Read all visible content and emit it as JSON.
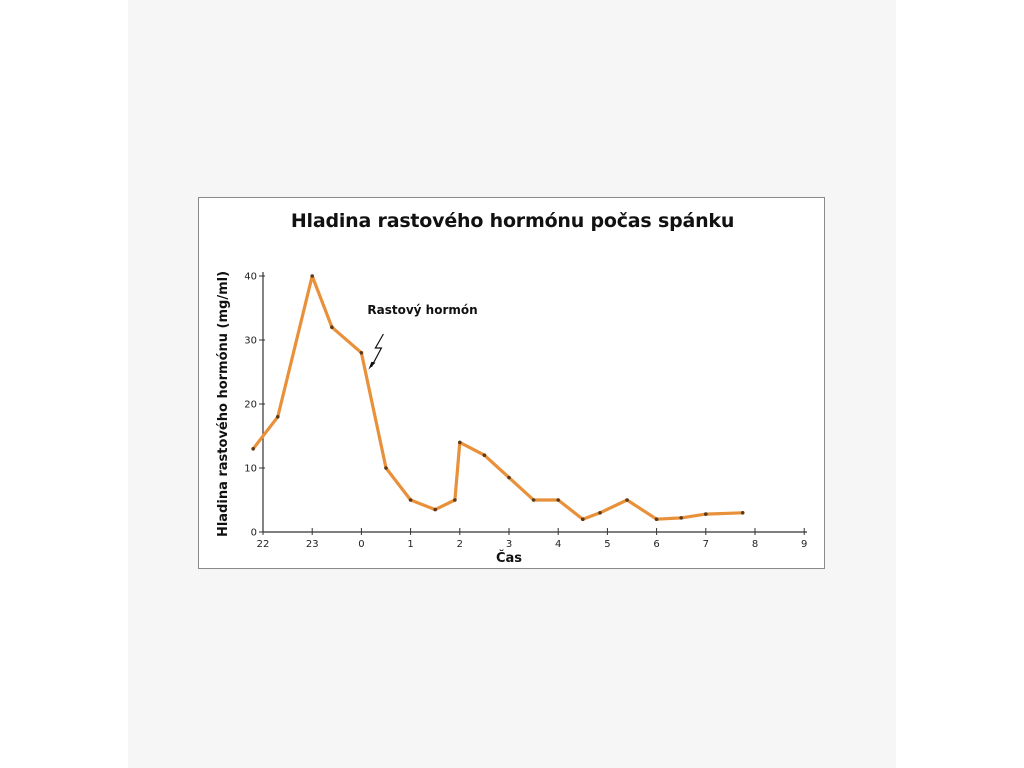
{
  "chart_data": {
    "type": "line",
    "title": "Hladina rastového hormónu počas spánku",
    "xlabel": "Čas",
    "ylabel": "Hladina rastového hormónu (mg/ml)",
    "x_ticks": [
      {
        "pos": 0,
        "label": "22"
      },
      {
        "pos": 1,
        "label": "23"
      },
      {
        "pos": 2,
        "label": "0"
      },
      {
        "pos": 3,
        "label": "1"
      },
      {
        "pos": 4,
        "label": "2"
      },
      {
        "pos": 5,
        "label": "3"
      },
      {
        "pos": 6,
        "label": "4"
      },
      {
        "pos": 7,
        "label": "5"
      },
      {
        "pos": 8,
        "label": "6"
      },
      {
        "pos": 9,
        "label": "7"
      },
      {
        "pos": 10,
        "label": "8"
      },
      {
        "pos": 11,
        "label": "9"
      }
    ],
    "y_ticks": [
      0,
      10,
      20,
      30,
      40
    ],
    "xlim": [
      -0.2,
      11
    ],
    "ylim": [
      0,
      40
    ],
    "series": [
      {
        "name": "",
        "color": "#e8913a",
        "points": [
          {
            "x": -0.2,
            "y": 13
          },
          {
            "x": 0.3,
            "y": 18
          },
          {
            "x": 1.0,
            "y": 40
          },
          {
            "x": 1.4,
            "y": 32
          },
          {
            "x": 2.0,
            "y": 28
          },
          {
            "x": 2.5,
            "y": 10
          },
          {
            "x": 3.0,
            "y": 5
          },
          {
            "x": 3.5,
            "y": 3.5
          },
          {
            "x": 3.9,
            "y": 5
          },
          {
            "x": 4.0,
            "y": 14
          },
          {
            "x": 4.5,
            "y": 12
          },
          {
            "x": 5.0,
            "y": 8.5
          },
          {
            "x": 5.5,
            "y": 5
          },
          {
            "x": 6.0,
            "y": 5
          },
          {
            "x": 6.5,
            "y": 2
          },
          {
            "x": 6.85,
            "y": 3
          },
          {
            "x": 7.4,
            "y": 5
          },
          {
            "x": 8.0,
            "y": 2
          },
          {
            "x": 8.5,
            "y": 2.2
          },
          {
            "x": 9.0,
            "y": 2.8
          },
          {
            "x": 9.75,
            "y": 3
          }
        ]
      }
    ],
    "annotations": [
      {
        "text": "Rastový hormón",
        "x": 2.0,
        "y": 28
      }
    ],
    "grid": false,
    "legend": "none"
  }
}
